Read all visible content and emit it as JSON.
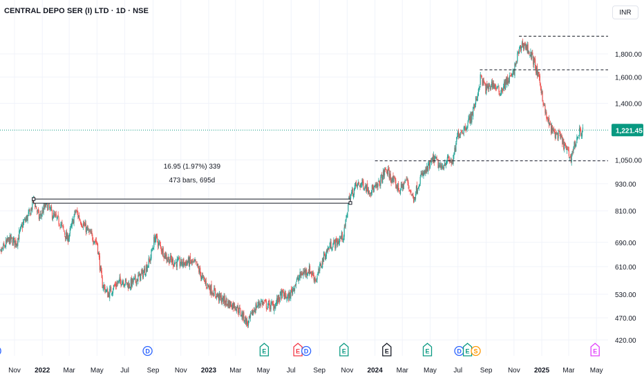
{
  "header": {
    "symbol_title": "CENTRAL DEPO SER (I) LTD · 1D · NSE",
    "currency": "INR"
  },
  "colors": {
    "up": "#26a69a",
    "down": "#ef5350",
    "grid": "#f0f3fa",
    "current_price_line": "#089981",
    "dividend": "#2962ff",
    "earnings_green": "#089981",
    "earnings_red": "#f23645",
    "earnings_black": "#131722",
    "split": "#ff9800",
    "earnings_magenta": "#e040fb"
  },
  "chart_data": {
    "type": "candlestick",
    "y_axis": {
      "scale": "log",
      "ticks": [
        "1,800.00",
        "1,600.00",
        "1,400.00",
        "1,050.00",
        "930.00",
        "810.00",
        "690.00",
        "610.00",
        "530.00",
        "470.00",
        "420.00"
      ],
      "tick_values": [
        1800,
        1600,
        1400,
        1050,
        930,
        810,
        690,
        610,
        530,
        470,
        420
      ]
    },
    "x_axis": {
      "ticks": [
        {
          "label": "Nov",
          "date": "2021-11",
          "bold": false
        },
        {
          "label": "2022",
          "date": "2022-01",
          "bold": true
        },
        {
          "label": "Mar",
          "date": "2022-03",
          "bold": false
        },
        {
          "label": "May",
          "date": "2022-05",
          "bold": false
        },
        {
          "label": "Jul",
          "date": "2022-07",
          "bold": false
        },
        {
          "label": "Sep",
          "date": "2022-09",
          "bold": false
        },
        {
          "label": "Nov",
          "date": "2022-11",
          "bold": false
        },
        {
          "label": "2023",
          "date": "2023-01",
          "bold": true
        },
        {
          "label": "Mar",
          "date": "2023-03",
          "bold": false
        },
        {
          "label": "May",
          "date": "2023-05",
          "bold": false
        },
        {
          "label": "Jul",
          "date": "2023-07",
          "bold": false
        },
        {
          "label": "Sep",
          "date": "2023-09",
          "bold": false
        },
        {
          "label": "Nov",
          "date": "2023-11",
          "bold": false
        },
        {
          "label": "2024",
          "date": "2024-01",
          "bold": true
        },
        {
          "label": "Mar",
          "date": "2024-03",
          "bold": false
        },
        {
          "label": "May",
          "date": "2024-05",
          "bold": false
        },
        {
          "label": "Jul",
          "date": "2024-07",
          "bold": false
        },
        {
          "label": "Sep",
          "date": "2024-09",
          "bold": false
        },
        {
          "label": "Nov",
          "date": "2024-11",
          "bold": false
        },
        {
          "label": "2025",
          "date": "2025-01",
          "bold": true
        },
        {
          "label": "Mar",
          "date": "2025-03",
          "bold": false
        },
        {
          "label": "May",
          "date": "2025-05",
          "bold": false
        }
      ]
    },
    "current_price": {
      "value": 1221.45,
      "label": "1,221.45"
    },
    "price_path": [
      [
        "2021-09-20",
        620
      ],
      [
        "2021-10-05",
        665
      ],
      [
        "2021-10-20",
        700
      ],
      [
        "2021-11-05",
        690
      ],
      [
        "2021-11-20",
        760
      ],
      [
        "2021-12-05",
        800
      ],
      [
        "2021-12-13",
        860
      ],
      [
        "2021-12-25",
        780
      ],
      [
        "2022-01-10",
        840
      ],
      [
        "2022-01-25",
        790
      ],
      [
        "2022-02-10",
        760
      ],
      [
        "2022-02-25",
        700
      ],
      [
        "2022-03-05",
        740
      ],
      [
        "2022-03-15",
        810
      ],
      [
        "2022-03-30",
        760
      ],
      [
        "2022-04-15",
        720
      ],
      [
        "2022-05-01",
        690
      ],
      [
        "2022-05-12",
        560
      ],
      [
        "2022-05-25",
        530
      ],
      [
        "2022-06-10",
        555
      ],
      [
        "2022-06-25",
        570
      ],
      [
        "2022-07-10",
        555
      ],
      [
        "2022-07-25",
        570
      ],
      [
        "2022-08-10",
        590
      ],
      [
        "2022-08-25",
        630
      ],
      [
        "2022-09-05",
        710
      ],
      [
        "2022-09-15",
        680
      ],
      [
        "2022-09-30",
        640
      ],
      [
        "2022-10-15",
        625
      ],
      [
        "2022-11-01",
        620
      ],
      [
        "2022-11-20",
        625
      ],
      [
        "2022-12-05",
        615
      ],
      [
        "2022-12-20",
        570
      ],
      [
        "2023-01-05",
        545
      ],
      [
        "2023-01-25",
        520
      ],
      [
        "2023-02-15",
        505
      ],
      [
        "2023-03-01",
        500
      ],
      [
        "2023-03-20",
        470
      ],
      [
        "2023-03-28",
        455
      ],
      [
        "2023-04-10",
        490
      ],
      [
        "2023-04-25",
        510
      ],
      [
        "2023-05-10",
        500
      ],
      [
        "2023-05-25",
        500
      ],
      [
        "2023-06-10",
        530
      ],
      [
        "2023-06-25",
        520
      ],
      [
        "2023-07-10",
        560
      ],
      [
        "2023-07-25",
        590
      ],
      [
        "2023-08-10",
        600
      ],
      [
        "2023-08-25",
        570
      ],
      [
        "2023-09-10",
        640
      ],
      [
        "2023-09-25",
        680
      ],
      [
        "2023-10-10",
        690
      ],
      [
        "2023-10-25",
        720
      ],
      [
        "2023-11-05",
        860
      ],
      [
        "2023-11-20",
        920
      ],
      [
        "2023-12-05",
        930
      ],
      [
        "2023-12-20",
        900
      ],
      [
        "2024-01-05",
        910
      ],
      [
        "2024-01-25",
        1000
      ],
      [
        "2024-02-10",
        940
      ],
      [
        "2024-02-25",
        900
      ],
      [
        "2024-03-10",
        950
      ],
      [
        "2024-03-25",
        860
      ],
      [
        "2024-04-10",
        960
      ],
      [
        "2024-04-25",
        1000
      ],
      [
        "2024-05-10",
        1060
      ],
      [
        "2024-05-25",
        1000
      ],
      [
        "2024-06-05",
        1050
      ],
      [
        "2024-06-20",
        1040
      ],
      [
        "2024-07-01",
        1200
      ],
      [
        "2024-07-15",
        1230
      ],
      [
        "2024-07-30",
        1310
      ],
      [
        "2024-08-10",
        1420
      ],
      [
        "2024-08-20",
        1600
      ],
      [
        "2024-09-01",
        1500
      ],
      [
        "2024-09-15",
        1550
      ],
      [
        "2024-09-30",
        1480
      ],
      [
        "2024-10-15",
        1560
      ],
      [
        "2024-10-30",
        1620
      ],
      [
        "2024-11-10",
        1800
      ],
      [
        "2024-11-20",
        1900
      ],
      [
        "2024-12-01",
        1850
      ],
      [
        "2024-12-15",
        1730
      ],
      [
        "2024-12-30",
        1520
      ],
      [
        "2025-01-10",
        1310
      ],
      [
        "2025-01-25",
        1210
      ],
      [
        "2025-02-10",
        1180
      ],
      [
        "2025-02-25",
        1100
      ],
      [
        "2025-03-05",
        1060
      ],
      [
        "2025-03-12",
        1120
      ],
      [
        "2025-03-25",
        1210
      ],
      [
        "2025-04-02",
        1221
      ]
    ],
    "horizontal_levels": [
      {
        "from": "2024-11-12",
        "to": "2025-05-31",
        "value": 1970
      },
      {
        "from": "2024-08-18",
        "to": "2025-05-31",
        "value": 1660
      },
      {
        "from": "2024-01-01",
        "to": "2025-05-31",
        "value": 1045
      }
    ],
    "measure": {
      "from": "2021-12-13",
      "to": "2023-11-08",
      "low": 843,
      "high": 860,
      "line1": "16.95 (1.97%) 339",
      "line2": "473 bars, 695d"
    },
    "events": [
      {
        "date": "2021-09-22",
        "letters": [
          "D"
        ],
        "kinds": [
          "dividend"
        ]
      },
      {
        "date": "2022-08-20",
        "letters": [
          "D"
        ],
        "kinds": [
          "dividend"
        ]
      },
      {
        "date": "2023-05-03",
        "letters": [
          "E"
        ],
        "kinds": [
          "earnings_green"
        ]
      },
      {
        "date": "2023-07-25",
        "letters": [
          "E",
          "D"
        ],
        "kinds": [
          "earnings_red",
          "dividend"
        ]
      },
      {
        "date": "2023-10-25",
        "letters": [
          "E"
        ],
        "kinds": [
          "earnings_green"
        ]
      },
      {
        "date": "2024-01-27",
        "letters": [
          "E"
        ],
        "kinds": [
          "earnings_black"
        ]
      },
      {
        "date": "2024-04-25",
        "letters": [
          "E"
        ],
        "kinds": [
          "earnings_green"
        ]
      },
      {
        "date": "2024-07-22",
        "letters": [
          "D",
          "E",
          "S"
        ],
        "kinds": [
          "dividend",
          "earnings_green",
          "split"
        ]
      },
      {
        "date": "2025-04-28",
        "letters": [
          "E"
        ],
        "kinds": [
          "earnings_magenta"
        ]
      }
    ]
  }
}
